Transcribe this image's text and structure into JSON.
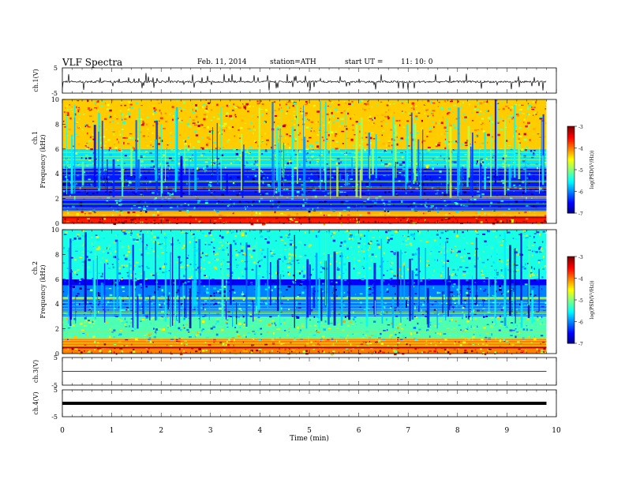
{
  "header": {
    "title": "VLF  Spectra",
    "date": "Feb. 11, 2014",
    "station": "station=ATH",
    "start_label": "start  UT  =",
    "start_time": "11: 10: 0"
  },
  "chart_data": [
    {
      "type": "line",
      "panel": "ch1_waveform",
      "ylabel": "ch.1(V)",
      "ylim": [
        -5,
        5
      ],
      "yticks": [
        "5",
        "-5"
      ],
      "xlim": [
        0,
        10
      ],
      "description_of_series": "noisy baseline near -0.5 V with frequent spikes to about +3 V and -3 V",
      "series": [
        {
          "baseline": -0.5,
          "spike_max": 3.5,
          "spike_min": -3.5
        }
      ]
    },
    {
      "type": "heatmap",
      "panel": "ch1_spectrogram",
      "ylabel_line1": "ch.1",
      "ylabel_line2": "Frequency  (kHz)",
      "ylim": [
        0,
        10
      ],
      "yticks": [
        "10",
        "8",
        "6",
        "4",
        "2",
        "0"
      ],
      "xlim": [
        0,
        9.8
      ],
      "colorbar": {
        "label": "log(PSD(V²/Hz))",
        "range": [
          -7,
          -3
        ],
        "ticks": [
          "-3",
          "-4",
          "-5",
          "-6",
          "-7"
        ]
      },
      "bands_khz": [
        {
          "from": 0,
          "to": 0.5,
          "level": -3.6
        },
        {
          "from": 0.5,
          "to": 1.0,
          "level": -4.2
        },
        {
          "from": 1.0,
          "to": 4.5,
          "level": -6.4
        },
        {
          "from": 4.5,
          "to": 6.0,
          "level": -5.6
        },
        {
          "from": 6.0,
          "to": 10.0,
          "level": -4.3
        }
      ]
    },
    {
      "type": "heatmap",
      "panel": "ch2_spectrogram",
      "ylabel_line1": "ch.2",
      "ylabel_line2": "Frequency  (kHz)",
      "ylim": [
        0,
        10
      ],
      "yticks": [
        "10",
        "8",
        "6",
        "4",
        "2",
        "0"
      ],
      "xlim": [
        0,
        9.8
      ],
      "colorbar": {
        "label": "log(PSD(V²/Hz))",
        "range": [
          -7,
          -3
        ],
        "ticks": [
          "-3",
          "-4",
          "-5",
          "-6",
          "-7"
        ]
      },
      "bands_khz": [
        {
          "from": 0,
          "to": 1.2,
          "level": -4.0
        },
        {
          "from": 1.2,
          "to": 3.0,
          "level": -5.2
        },
        {
          "from": 3.0,
          "to": 5.5,
          "level": -6.0
        },
        {
          "from": 5.5,
          "to": 6.0,
          "level": -6.5
        },
        {
          "from": 6.0,
          "to": 10.0,
          "level": -5.4
        }
      ]
    },
    {
      "type": "line",
      "panel": "ch3_waveform",
      "ylabel": "ch.3(V)",
      "ylim": [
        -5,
        5
      ],
      "yticks": [
        "5",
        "-5"
      ],
      "xlim": [
        0,
        9.8
      ],
      "series": [
        {
          "baseline": 0.0
        }
      ]
    },
    {
      "type": "line",
      "panel": "ch4_waveform",
      "ylabel": "ch.4(V)",
      "ylim": [
        -5,
        5
      ],
      "yticks": [
        "5",
        "-5"
      ],
      "xlim": [
        0,
        9.8
      ],
      "series": [
        {
          "baseline": 0.0,
          "thickness": "heavy"
        }
      ]
    }
  ],
  "x_axis": {
    "label": "Time  (min)",
    "range": [
      0,
      10
    ],
    "ticks": [
      "0",
      "1",
      "2",
      "3",
      "4",
      "5",
      "6",
      "7",
      "8",
      "9",
      "10"
    ]
  }
}
